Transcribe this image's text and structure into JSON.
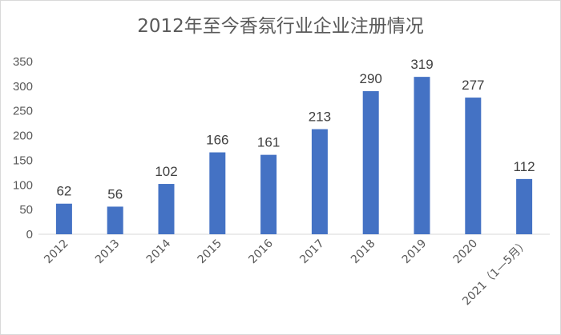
{
  "chart_data": {
    "type": "bar",
    "title": "2012年至今香氛行业企业注册情况",
    "categories": [
      "2012",
      "2013",
      "2014",
      "2015",
      "2016",
      "2017",
      "2018",
      "2019",
      "2020",
      "2021（1—5月）"
    ],
    "values": [
      62,
      56,
      102,
      166,
      161,
      213,
      290,
      319,
      277,
      112
    ],
    "ylim": [
      0,
      350
    ],
    "yticks": [
      0,
      50,
      100,
      150,
      200,
      250,
      300,
      350
    ],
    "grid": false,
    "legend": "none",
    "bar_color": "#4472C4"
  }
}
